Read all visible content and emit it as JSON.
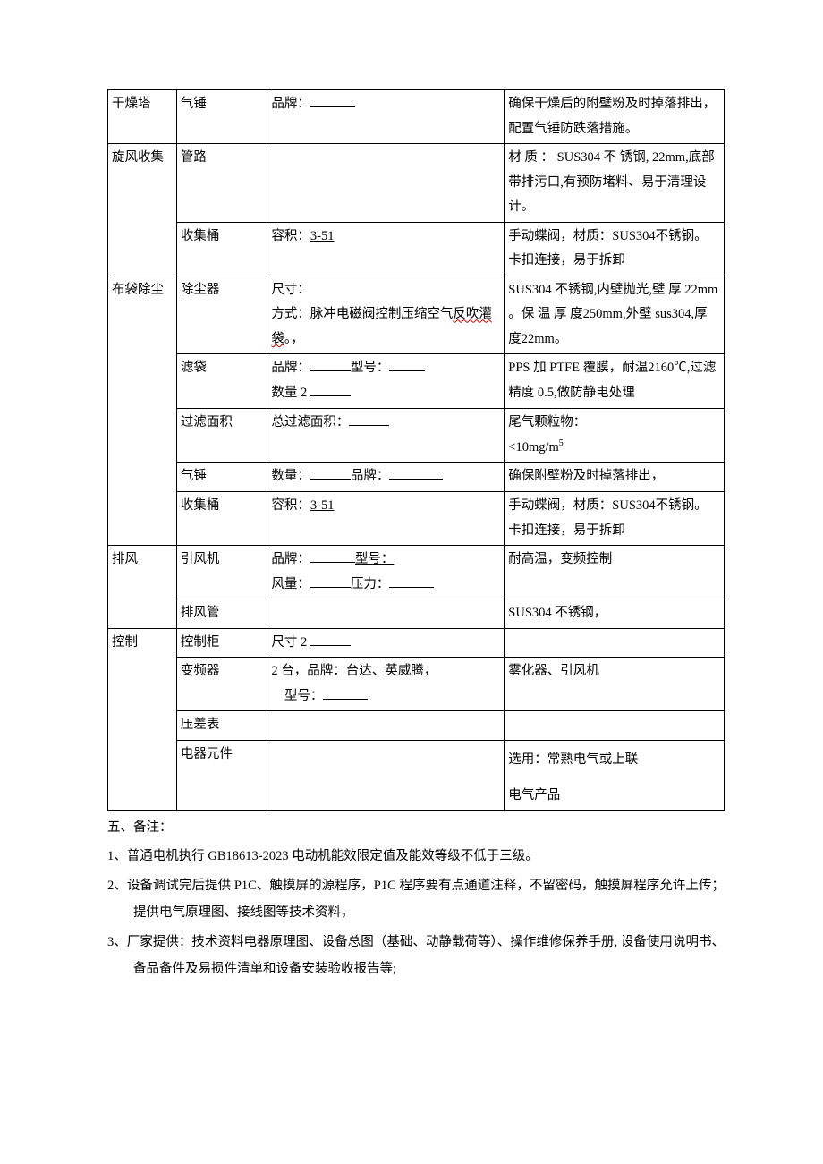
{
  "table": {
    "groups": [
      {
        "category": "干燥塔",
        "rows": [
          {
            "component": "气锤",
            "spec": {
              "prefix": "品牌：",
              "blank": 50
            },
            "notes": "确保干燥后的附壁粉及时掉落排出，配置气锤防跌落措施。"
          }
        ]
      },
      {
        "category": "旋风收集",
        "rows": [
          {
            "component": "管路",
            "spec": null,
            "notes": "材 质 ： SUS304 不 锈钢, 22mm,底部带排污口,有预防堵料、易于清理设计。"
          },
          {
            "component": "收集桶",
            "spec": {
              "prefix": "容积：",
              "underline": "3-51"
            },
            "notes": "手动蝶阀，材质：SUS304不锈钢。卡扣连接，易于拆卸"
          }
        ]
      },
      {
        "category": "布袋除尘",
        "rows": [
          {
            "component": "除尘器",
            "spec_html": "dust_collector_spec",
            "notes": "SUS304 不锈钢,内壁抛光,壁 厚 22mm 。保 温 厚 度250mm,外壁 sus304,厚度22mm。"
          },
          {
            "component": "滤袋",
            "spec_html": "filter_bag_spec",
            "notes": "PPS 加 PTFE 覆膜，耐温2160℃,过滤精度 0.5,做防静电处理"
          },
          {
            "component": "过滤面积",
            "spec": {
              "prefix": "总过滤面积：",
              "blank": 45
            },
            "notes_html": "filter_area_notes"
          },
          {
            "component": "气锤",
            "spec_html": "qichui_spec",
            "notes": "确保附壁粉及时掉落排出，"
          },
          {
            "component": "收集桶",
            "spec": {
              "prefix": "容积：",
              "underline": "3-51"
            },
            "notes": "手动蝶阀，材质：SUS304不锈钢。卡扣连接，易于拆卸"
          }
        ]
      },
      {
        "category": "排风",
        "rows": [
          {
            "component": "引风机",
            "spec_html": "fan_spec",
            "notes": "耐高温，变频控制"
          },
          {
            "component": "排风管",
            "spec": null,
            "notes": "SUS304 不锈钢，"
          }
        ]
      },
      {
        "category": "控制",
        "rows": [
          {
            "component": "控制柜",
            "spec": {
              "prefix": "尺寸 2 ",
              "blank": 45
            },
            "notes": ""
          },
          {
            "component": "变频器",
            "spec_html": "vfd_spec",
            "notes": "雾化器、引风机"
          },
          {
            "component": "压差表",
            "spec": null,
            "notes": ""
          },
          {
            "component": "电器元件",
            "spec": null,
            "notes_html": "electrical_notes"
          }
        ]
      }
    ],
    "html_fragments": {
      "dust_collector_spec": "尺寸：<br>方式：脉冲电磁阀控制压缩空气<span class=\"squiggle\">反吹灌袋</span>。，",
      "filter_bag_spec": "品牌：<span class=\"blank-line bl-45\"></span>型号：<span class=\"blank-line bl-40\"></span><br>数量 2 <span class=\"blank-line bl-45\"></span>",
      "filter_area_notes": "尾气颗粒物：<br>&lt;10mg/m<span class=\"superscript\">5</span>",
      "qichui_spec": "数量：<span class=\"blank-line bl-45\"></span>品牌：<span class=\"blank-line bl-60\"></span>",
      "fan_spec": "品牌：<span class=\"blank-line bl-50\"></span><span class=\"ul\">型号：</span><br>风量：<span class=\"blank-line bl-45\"></span>压力：<span class=\"blank-line bl-50\"></span>",
      "vfd_spec": "2 台，品牌：台达、英威腾，<br>　型号：<span class=\"blank-line bl-50\"></span>",
      "electrical_notes": "<div style=\"padding:6px 0 6px 0;\">选用：常熟电气或上联</div><div style=\"padding:6px 0 0 0;\">电气产品</div>"
    }
  },
  "notes": {
    "heading": "五、备注：",
    "items": [
      "1、普通电机执行 GB18613-2023 电动机能效限定值及能效等级不低于三级。",
      "2、设备调试完后提供 P1C、触摸屏的源程序，P1C 程序要有点通道注释，不留密码，触摸屏程序允许上传；提供电气原理图、接线图等技术资料，",
      "3、厂家提供：技术资料电器原理图、设备总图（基础、动静载荷等）、操作维修保养手册, 设备使用说明书、备品备件及易损件清单和设备安装验收报告等;"
    ]
  }
}
